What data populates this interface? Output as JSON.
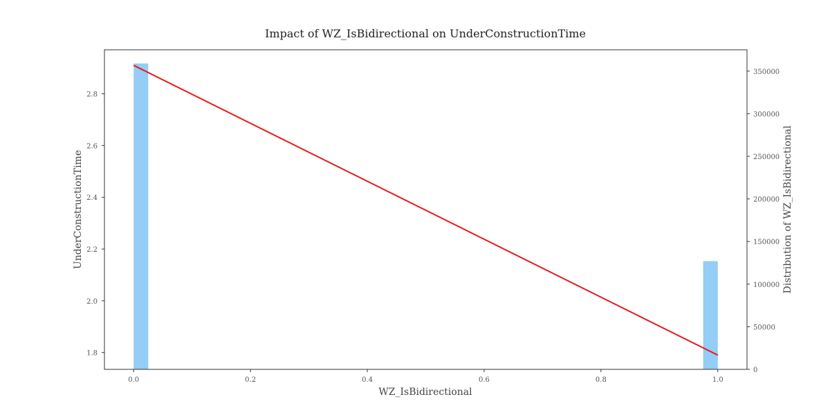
{
  "chart_data": {
    "type": "bar",
    "title": "Impact of WZ_IsBidirectional on UnderConstructionTime",
    "xlabel": "WZ_IsBidirectional",
    "ylabel": "UnderConstructionTime",
    "y2label": "Distribution of WZ_IsBidirectional",
    "xlim": [
      -0.05,
      1.05
    ],
    "ylim": [
      1.735,
      2.97
    ],
    "y2lim": [
      0,
      375000
    ],
    "x_ticks": [
      "0.0",
      "0.2",
      "0.4",
      "0.6",
      "0.8",
      "1.0"
    ],
    "y_ticks": [
      "1.8",
      "2.0",
      "2.2",
      "2.4",
      "2.6",
      "2.8"
    ],
    "y2_ticks": [
      "0",
      "50000",
      "100000",
      "150000",
      "200000",
      "250000",
      "300000",
      "350000"
    ],
    "grid": false,
    "series": [
      {
        "kind": "bar",
        "axis": "right",
        "color": "#94cdf5",
        "bars": [
          {
            "x0": 0.0,
            "x1": 0.025,
            "count": 359000
          },
          {
            "x0": 0.975,
            "x1": 1.0,
            "count": 127000
          }
        ]
      },
      {
        "kind": "line",
        "axis": "left",
        "color": "#e8191c",
        "x": [
          0,
          1
        ],
        "y": [
          2.91,
          1.79
        ]
      }
    ]
  }
}
